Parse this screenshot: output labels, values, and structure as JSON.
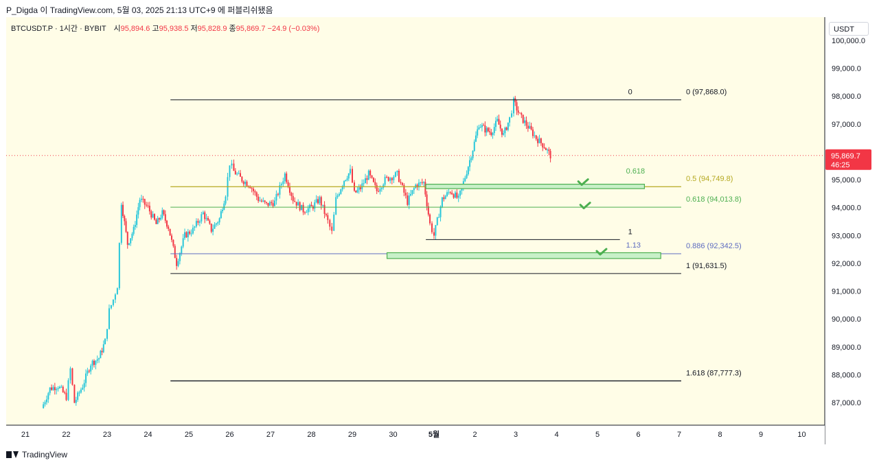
{
  "header": {
    "author": "P_Digda",
    "published": "이 TradingView.com, 5월 03, 2025 21:13 UTC+9 에 퍼블리쉬됐음"
  },
  "legend": {
    "symbol": "BTCUSDT.P · 1시간 · BYBIT",
    "open_label": "시",
    "open": "95,894.6",
    "high_label": "고",
    "high": "95,938.5",
    "low_label": "저",
    "low": "95,828.9",
    "close_label": "종",
    "close": "95,869.7",
    "change": "−24.9 (−0.03%)"
  },
  "currency_button": "USDT",
  "footer": {
    "brand": "TradingView"
  },
  "colors": {
    "background": "#fffde7",
    "up": "#26c6da",
    "down": "#f23645",
    "fib_0": "#131722",
    "fib_05": "#b5a820",
    "fib_0618": "#4caf50",
    "fib_0886": "#5c6bc0",
    "zone_fill": "#c8f0c8",
    "zone_stroke": "#4caf50",
    "price_tag": "#f23645"
  },
  "chart_data": {
    "type": "candlestick",
    "symbol": "BTCUSDT.P",
    "interval": "1h",
    "ylim": [
      86500,
      100500
    ],
    "y_ticks": [
      87000,
      88000,
      89000,
      90000,
      91000,
      92000,
      93000,
      94000,
      95000,
      96000,
      97000,
      98000,
      99000,
      100000
    ],
    "y_tick_labels": [
      "87,000.0",
      "88,000.0",
      "89,000.0",
      "90,000.0",
      "91,000.0",
      "92,000.0",
      "93,000.0",
      "94,000.0",
      "95,000.0",
      "96,000.0",
      "97,000.0",
      "98,000.0",
      "99,000.0",
      "100,000.0"
    ],
    "x_ticks": [
      {
        "label": "21",
        "day": 21
      },
      {
        "label": "22",
        "day": 22
      },
      {
        "label": "23",
        "day": 23
      },
      {
        "label": "24",
        "day": 24
      },
      {
        "label": "25",
        "day": 25
      },
      {
        "label": "26",
        "day": 26
      },
      {
        "label": "27",
        "day": 27
      },
      {
        "label": "28",
        "day": 28
      },
      {
        "label": "29",
        "day": 29
      },
      {
        "label": "30",
        "day": 30
      },
      {
        "label": "5월",
        "day": 31
      },
      {
        "label": "2",
        "day": 32
      },
      {
        "label": "3",
        "day": 33
      },
      {
        "label": "4",
        "day": 34
      },
      {
        "label": "5",
        "day": 35
      },
      {
        "label": "6",
        "day": 36
      },
      {
        "label": "7",
        "day": 37
      },
      {
        "label": "8",
        "day": 38
      },
      {
        "label": "9",
        "day": 39
      },
      {
        "label": "10",
        "day": 40
      }
    ],
    "last_price": {
      "value": 95869.7,
      "label": "95,869.7",
      "countdown": "46:25"
    },
    "price_path": [
      [
        21.4,
        86800
      ],
      [
        21.6,
        87500
      ],
      [
        21.8,
        87600
      ],
      [
        22.0,
        87200
      ],
      [
        22.1,
        88200
      ],
      [
        22.2,
        87000
      ],
      [
        22.4,
        87600
      ],
      [
        22.6,
        88400
      ],
      [
        22.8,
        88600
      ],
      [
        22.95,
        89200
      ],
      [
        23.05,
        90300
      ],
      [
        23.15,
        90700
      ],
      [
        23.25,
        91200
      ],
      [
        23.35,
        94200
      ],
      [
        23.5,
        92700
      ],
      [
        23.65,
        93200
      ],
      [
        23.8,
        94300
      ],
      [
        24.0,
        94000
      ],
      [
        24.2,
        93400
      ],
      [
        24.35,
        93800
      ],
      [
        24.5,
        93300
      ],
      [
        24.7,
        92000
      ],
      [
        24.9,
        93000
      ],
      [
        25.1,
        93200
      ],
      [
        25.35,
        93800
      ],
      [
        25.55,
        93200
      ],
      [
        25.75,
        93600
      ],
      [
        25.9,
        94500
      ],
      [
        26.0,
        95600
      ],
      [
        26.1,
        95300
      ],
      [
        26.3,
        95000
      ],
      [
        26.5,
        94800
      ],
      [
        26.7,
        94300
      ],
      [
        26.9,
        94100
      ],
      [
        27.1,
        94200
      ],
      [
        27.35,
        95200
      ],
      [
        27.55,
        94300
      ],
      [
        27.8,
        93900
      ],
      [
        28.0,
        94000
      ],
      [
        28.2,
        94300
      ],
      [
        28.4,
        93500
      ],
      [
        28.5,
        93100
      ],
      [
        28.6,
        94300
      ],
      [
        28.8,
        95000
      ],
      [
        28.95,
        95300
      ],
      [
        29.05,
        94500
      ],
      [
        29.2,
        94700
      ],
      [
        29.4,
        95200
      ],
      [
        29.6,
        94600
      ],
      [
        29.8,
        95000
      ],
      [
        30.1,
        95200
      ],
      [
        30.35,
        94200
      ],
      [
        30.55,
        94800
      ],
      [
        30.75,
        94900
      ],
      [
        30.9,
        93400
      ],
      [
        31.0,
        93000
      ],
      [
        31.2,
        94300
      ],
      [
        31.4,
        94600
      ],
      [
        31.6,
        94300
      ],
      [
        31.8,
        95300
      ],
      [
        31.95,
        96100
      ],
      [
        32.1,
        97000
      ],
      [
        32.25,
        96800
      ],
      [
        32.4,
        96700
      ],
      [
        32.55,
        97100
      ],
      [
        32.7,
        96600
      ],
      [
        32.85,
        97200
      ],
      [
        32.95,
        97800
      ],
      [
        33.1,
        97300
      ],
      [
        33.3,
        96900
      ],
      [
        33.5,
        96500
      ],
      [
        33.7,
        96200
      ],
      [
        33.85,
        95870
      ]
    ],
    "fib_top": {
      "x_range": [
        24.55,
        37.05
      ],
      "levels": [
        {
          "ratio": "0",
          "price": 97868.0,
          "label": "0 (97,868.0)",
          "color": "#131722",
          "width": 1
        },
        {
          "ratio": "0.5",
          "price": 94749.8,
          "label": "0.5 (94,749.8)",
          "color": "#b5a820",
          "width": 1.2
        },
        {
          "ratio": "0.618",
          "price": 94013.8,
          "label": "0.618 (94,013.8)",
          "color": "#4caf50",
          "width": 1
        },
        {
          "ratio": "0.886",
          "price": 92342.5,
          "label": "0.886 (92,342.5)",
          "color": "#5c6bc0",
          "width": 1
        },
        {
          "ratio": "1",
          "price": 91631.5,
          "label": "1 (91,631.5)",
          "color": "#131722",
          "width": 1
        },
        {
          "ratio": "1.618",
          "price": 87777.3,
          "label": "1.618 (87,777.3)",
          "color": "#131722",
          "width": 1.3
        }
      ]
    },
    "fib_secondary": [
      {
        "label": "0",
        "x_label": 35.75,
        "price": 97868.0
      },
      {
        "label": "1",
        "x_label": 35.75,
        "price": 92850.0,
        "line_x": [
          30.8,
          35.55
        ]
      },
      {
        "label": "0.618",
        "x_label": 35.7,
        "price": 95100.0,
        "color": "#4caf50"
      },
      {
        "label": "1.13",
        "x_label": 35.7,
        "price": 92440.0,
        "color": "#5c6bc0"
      }
    ],
    "zones": [
      {
        "x": [
          30.8,
          36.15
        ],
        "top": 94790,
        "bottom": 94680
      },
      {
        "x": [
          29.85,
          36.55
        ],
        "top": 92330,
        "bottom": 92170
      }
    ],
    "checkmarks": [
      {
        "x": 34.65,
        "price": 94890
      },
      {
        "x": 34.7,
        "price": 94050
      },
      {
        "x": 35.1,
        "price": 92390
      }
    ]
  }
}
